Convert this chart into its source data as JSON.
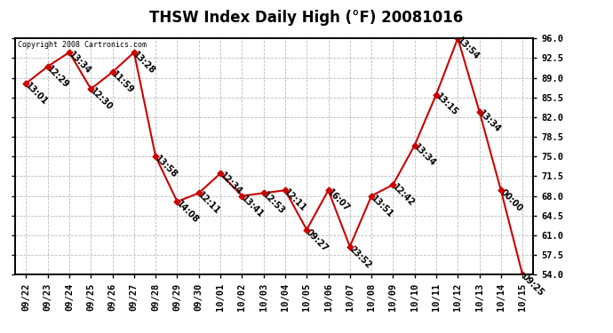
{
  "title": "THSW Index Daily High (°F) 20081016",
  "copyright": "Copyright 2008 Cartronics.com",
  "dates": [
    "09/22",
    "09/23",
    "09/24",
    "09/25",
    "09/26",
    "09/27",
    "09/28",
    "09/29",
    "09/30",
    "10/01",
    "10/02",
    "10/03",
    "10/04",
    "10/05",
    "10/06",
    "10/07",
    "10/08",
    "10/09",
    "10/10",
    "10/11",
    "10/12",
    "10/13",
    "10/14",
    "10/15"
  ],
  "values": [
    88.0,
    91.0,
    93.5,
    87.0,
    90.0,
    93.5,
    75.0,
    67.0,
    68.5,
    72.0,
    68.0,
    68.5,
    69.0,
    62.0,
    69.0,
    59.0,
    68.0,
    70.0,
    77.0,
    86.0,
    96.0,
    83.0,
    69.0,
    54.0
  ],
  "times": [
    "13:01",
    "12:29",
    "13:34",
    "12:30",
    "11:59",
    "13:28",
    "13:58",
    "14:08",
    "12:11",
    "12:34",
    "13:41",
    "12:53",
    "12:11",
    "09:27",
    "16:07",
    "23:52",
    "13:51",
    "12:42",
    "13:34",
    "13:15",
    "13:54",
    "13:34",
    "00:00",
    "09:25"
  ],
  "line_color": "#cc0000",
  "marker_color": "#cc0000",
  "bg_color": "#ffffff",
  "grid_color": "#bbbbbb",
  "ylim_min": 54.0,
  "ylim_max": 96.0,
  "yticks": [
    54.0,
    57.5,
    61.0,
    64.5,
    68.0,
    71.5,
    75.0,
    78.5,
    82.0,
    85.5,
    89.0,
    92.5,
    96.0
  ],
  "ytick_labels": [
    "54.0",
    "57.5",
    "61.0",
    "64.5",
    "68.0",
    "71.5",
    "75.0",
    "78.5",
    "82.0",
    "85.5",
    "89.0",
    "92.5",
    "96.0"
  ],
  "title_fontsize": 12,
  "label_fontsize": 7,
  "tick_fontsize": 7.5,
  "label_rotation": -45
}
